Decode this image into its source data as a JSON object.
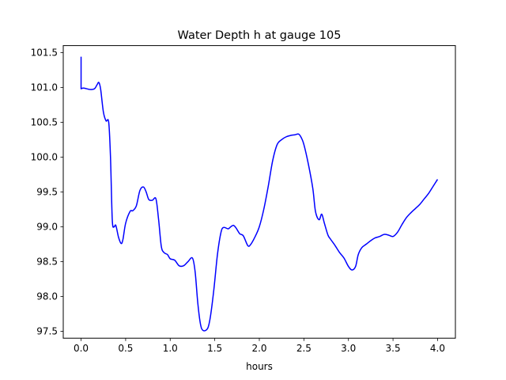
{
  "chart_data": {
    "type": "line",
    "title": "Water Depth h at gauge 105",
    "xlabel": "hours",
    "ylabel": "",
    "xlim": [
      -0.2,
      4.2
    ],
    "ylim": [
      97.4,
      101.6
    ],
    "xticks": [
      0.0,
      0.5,
      1.0,
      1.5,
      2.0,
      2.5,
      3.0,
      3.5,
      4.0
    ],
    "xtick_labels": [
      "0.0",
      "0.5",
      "1.0",
      "1.5",
      "2.0",
      "2.5",
      "3.0",
      "3.5",
      "4.0"
    ],
    "yticks": [
      97.5,
      98.0,
      98.5,
      99.0,
      99.5,
      100.0,
      100.5,
      101.0,
      101.5
    ],
    "ytick_labels": [
      "97.5",
      "98.0",
      "98.5",
      "99.0",
      "99.5",
      "100.0",
      "100.5",
      "101.0",
      "101.5"
    ],
    "grid": false,
    "legend": "none",
    "series": [
      {
        "color": "#0000ff",
        "x": [
          0.0,
          0.0,
          0.03,
          0.1,
          0.15,
          0.18,
          0.2,
          0.22,
          0.25,
          0.28,
          0.31,
          0.33,
          0.35,
          0.37,
          0.39,
          0.42,
          0.45,
          0.47,
          0.5,
          0.55,
          0.58,
          0.62,
          0.66,
          0.7,
          0.73,
          0.76,
          0.8,
          0.84,
          0.87,
          0.9,
          0.93,
          0.97,
          1.0,
          1.05,
          1.1,
          1.15,
          1.2,
          1.25,
          1.28,
          1.31,
          1.34,
          1.37,
          1.42,
          1.45,
          1.49,
          1.53,
          1.57,
          1.6,
          1.65,
          1.68,
          1.71,
          1.74,
          1.78,
          1.82,
          1.87,
          1.9,
          1.95,
          2.0,
          2.05,
          2.1,
          2.15,
          2.2,
          2.25,
          2.3,
          2.35,
          2.4,
          2.44,
          2.47,
          2.5,
          2.55,
          2.6,
          2.63,
          2.67,
          2.7,
          2.73,
          2.77,
          2.8,
          2.85,
          2.9,
          2.95,
          3.0,
          3.04,
          3.08,
          3.11,
          3.15,
          3.2,
          3.25,
          3.3,
          3.35,
          3.4,
          3.45,
          3.5,
          3.55,
          3.6,
          3.65,
          3.7,
          3.75,
          3.8,
          3.85,
          3.9,
          3.95,
          4.0
        ],
        "y": [
          101.44,
          100.98,
          100.99,
          100.97,
          100.98,
          101.04,
          101.07,
          100.97,
          100.65,
          100.52,
          100.5,
          100.0,
          99.1,
          99.0,
          99.02,
          98.85,
          98.76,
          98.82,
          99.05,
          99.22,
          99.23,
          99.3,
          99.52,
          99.57,
          99.5,
          99.39,
          99.38,
          99.4,
          99.1,
          98.72,
          98.63,
          98.6,
          98.54,
          98.52,
          98.44,
          98.44,
          98.5,
          98.55,
          98.35,
          97.9,
          97.6,
          97.51,
          97.54,
          97.7,
          98.1,
          98.6,
          98.92,
          98.99,
          98.97,
          99.0,
          99.02,
          98.98,
          98.9,
          98.87,
          98.73,
          98.74,
          98.85,
          99.0,
          99.25,
          99.58,
          99.95,
          100.18,
          100.25,
          100.29,
          100.31,
          100.32,
          100.33,
          100.28,
          100.18,
          99.9,
          99.55,
          99.22,
          99.1,
          99.18,
          99.05,
          98.88,
          98.82,
          98.73,
          98.63,
          98.55,
          98.43,
          98.38,
          98.43,
          98.6,
          98.7,
          98.75,
          98.8,
          98.84,
          98.86,
          98.89,
          98.88,
          98.86,
          98.92,
          99.03,
          99.13,
          99.2,
          99.26,
          99.32,
          99.4,
          99.48,
          99.58,
          99.68
        ]
      }
    ]
  }
}
